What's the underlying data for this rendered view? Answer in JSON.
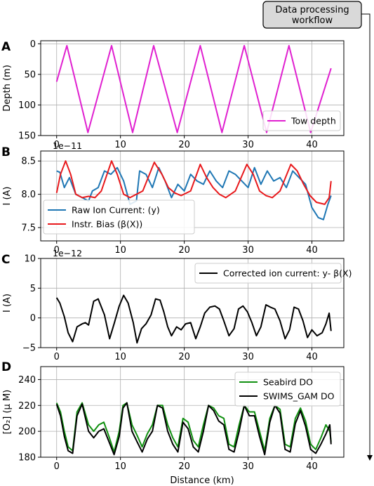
{
  "workflow_box": {
    "line1": "Data processing",
    "line2": "workflow"
  },
  "x_axis": {
    "label": "Distance (km)",
    "range": [
      -2.5,
      45
    ],
    "ticks": [
      0,
      10,
      20,
      30,
      40
    ],
    "tick_labels": [
      "0",
      "10",
      "20",
      "30",
      "40"
    ]
  },
  "chart_data": [
    {
      "panel": "A",
      "type": "line",
      "ylabel": "Depth (m)",
      "ylim": [
        150,
        -5
      ],
      "y_inverted": true,
      "yticks": [
        0,
        50,
        100,
        150
      ],
      "ytick_labels": [
        "0",
        "50",
        "100",
        "150"
      ],
      "grid": true,
      "legend": "lower-right",
      "series": [
        {
          "name": "Tow depth",
          "color": "#e020d0",
          "x": [
            0,
            1.6,
            4.9,
            8.6,
            11.9,
            15.2,
            18.9,
            22.5,
            25.9,
            29.4,
            32.9,
            36.4,
            39.8,
            43.0
          ],
          "y": [
            62,
            3,
            145,
            3,
            145,
            3,
            145,
            3,
            145,
            3,
            145,
            3,
            145,
            40
          ]
        }
      ]
    },
    {
      "panel": "B",
      "type": "line",
      "ylabel": "I (A)",
      "offset_label": "1e−11",
      "ylim": [
        7.3,
        8.65
      ],
      "yticks": [
        7.5,
        8.0,
        8.5
      ],
      "ytick_labels": [
        "7.5",
        "8.0",
        "8.5"
      ],
      "grid": true,
      "legend": "lower-left",
      "series": [
        {
          "name": "Raw Ion Current: (y)",
          "color": "#1f77b4",
          "x": [
            0,
            0.5,
            1.2,
            2.0,
            3.0,
            4.0,
            5.0,
            5.6,
            6.5,
            7.5,
            8.5,
            9.5,
            10.5,
            11.5,
            12.5,
            13.0,
            14.0,
            15.0,
            16.0,
            17.0,
            18.0,
            19.0,
            20.0,
            21.0,
            22.0,
            23.0,
            24.0,
            25.0,
            26.0,
            27.0,
            28.0,
            29.0,
            30.0,
            31.0,
            32.0,
            33.0,
            34.0,
            35.0,
            36.0,
            37.0,
            38.0,
            39.0,
            40.0,
            41.0,
            41.8,
            42.5,
            43.0
          ],
          "y": [
            8.35,
            8.33,
            8.1,
            8.25,
            8.0,
            7.95,
            7.9,
            8.05,
            8.1,
            8.35,
            8.3,
            8.4,
            8.2,
            7.85,
            7.9,
            8.35,
            8.3,
            8.1,
            8.4,
            8.2,
            7.95,
            8.15,
            8.05,
            8.3,
            8.2,
            8.15,
            8.35,
            8.2,
            8.1,
            8.35,
            8.3,
            8.2,
            8.1,
            8.4,
            8.15,
            8.35,
            8.2,
            8.25,
            8.1,
            8.35,
            8.25,
            8.15,
            7.8,
            7.65,
            7.62,
            7.85,
            7.98
          ]
        },
        {
          "name": "Instr. Bias (β(X))",
          "color": "#e8191c",
          "x": [
            0,
            0.6,
            1.4,
            2.2,
            3.0,
            4.0,
            5.0,
            6.0,
            7.0,
            8.6,
            9.5,
            10.5,
            11.5,
            12.5,
            13.5,
            15.3,
            16.5,
            17.5,
            18.5,
            19.5,
            21.0,
            22.5,
            23.5,
            24.5,
            25.5,
            26.5,
            28.0,
            29.8,
            30.8,
            31.8,
            32.8,
            33.8,
            35.0,
            36.7,
            37.7,
            38.7,
            39.7,
            40.7,
            42.0,
            42.7,
            43.0
          ],
          "y": [
            8.02,
            8.3,
            8.5,
            8.3,
            8.0,
            7.95,
            7.97,
            7.95,
            8.05,
            8.5,
            8.3,
            8.0,
            7.95,
            8.0,
            8.05,
            8.48,
            8.3,
            8.1,
            8.02,
            7.98,
            8.05,
            8.45,
            8.25,
            8.1,
            8.0,
            7.95,
            8.05,
            8.45,
            8.3,
            8.05,
            7.98,
            7.95,
            8.05,
            8.45,
            8.35,
            8.15,
            7.98,
            7.88,
            7.85,
            7.95,
            8.2
          ]
        }
      ]
    },
    {
      "panel": "C",
      "type": "line",
      "ylabel": "I (A)",
      "offset_label": "1e−12",
      "ylim": [
        -5,
        10
      ],
      "yticks": [
        -5,
        0,
        5,
        10
      ],
      "ytick_labels": [
        "−5",
        "0",
        "5",
        "10"
      ],
      "grid": true,
      "legend": "upper-right",
      "series": [
        {
          "name": "Corrected ion current: y- β(X)",
          "color": "#000000",
          "x": [
            0,
            0.5,
            1.2,
            1.8,
            2.5,
            3.2,
            4.0,
            4.5,
            5.0,
            5.8,
            6.5,
            7.5,
            8.3,
            9.0,
            9.8,
            10.5,
            11.2,
            12.0,
            12.6,
            13.3,
            14.0,
            14.8,
            15.5,
            16.2,
            16.8,
            17.4,
            18.0,
            18.8,
            19.5,
            20.2,
            21.0,
            21.8,
            22.5,
            23.2,
            24.0,
            24.8,
            25.5,
            26.2,
            27.0,
            27.8,
            28.5,
            29.2,
            29.9,
            30.6,
            31.3,
            32.0,
            32.8,
            33.5,
            34.2,
            35.0,
            35.8,
            36.5,
            37.2,
            37.9,
            38.6,
            39.3,
            40.0,
            40.8,
            41.6,
            42.2,
            42.7,
            43.0
          ],
          "y": [
            3.4,
            2.5,
            0.2,
            -2.5,
            -4.0,
            -1.5,
            -1.0,
            -0.8,
            -1.2,
            2.8,
            3.2,
            0.5,
            -3.5,
            -1.0,
            2.0,
            3.8,
            2.5,
            -0.8,
            -4.2,
            -1.8,
            -1.0,
            0.5,
            3.2,
            3.0,
            1.0,
            -1.5,
            -3.0,
            -1.5,
            -2.0,
            -1.0,
            -0.8,
            -3.5,
            -1.5,
            0.8,
            1.8,
            2.0,
            1.5,
            -0.5,
            -3.0,
            -1.8,
            1.5,
            2.0,
            1.0,
            -0.8,
            -3.0,
            -1.5,
            2.2,
            1.8,
            1.5,
            -0.5,
            -3.5,
            -2.0,
            1.8,
            1.5,
            -0.5,
            -3.3,
            -2.0,
            -3.0,
            -2.5,
            -1.0,
            0.8,
            -2.2
          ]
        }
      ]
    },
    {
      "panel": "D",
      "type": "line",
      "ylabel": "[O₂] (μ M)",
      "ylim": [
        180,
        250
      ],
      "yticks": [
        180,
        200,
        220,
        240
      ],
      "ytick_labels": [
        "180",
        "200",
        "220",
        "240"
      ],
      "grid": true,
      "legend": "upper-right",
      "series": [
        {
          "name": "Seabird DO",
          "color": "#109010",
          "x": [
            0,
            0.6,
            1.2,
            1.8,
            2.5,
            3.2,
            4.0,
            5.0,
            5.8,
            6.6,
            7.4,
            8.2,
            9.0,
            9.8,
            10.4,
            11.0,
            11.8,
            12.6,
            13.4,
            14.2,
            15.0,
            15.8,
            16.6,
            17.4,
            18.2,
            19.0,
            19.8,
            20.6,
            21.4,
            22.2,
            23.0,
            23.8,
            24.6,
            25.4,
            26.2,
            27.0,
            27.8,
            28.6,
            29.4,
            30.2,
            31.0,
            31.8,
            32.6,
            33.4,
            34.2,
            35.0,
            35.8,
            36.6,
            37.4,
            38.2,
            39.0,
            39.8,
            40.6,
            41.4,
            42.2,
            42.8,
            43.0
          ],
          "y": [
            222,
            215,
            200,
            188,
            185,
            215,
            222,
            205,
            200,
            205,
            207,
            196,
            184,
            200,
            220,
            222,
            205,
            197,
            188,
            198,
            205,
            220,
            220,
            205,
            195,
            188,
            210,
            207,
            193,
            188,
            205,
            220,
            218,
            212,
            210,
            190,
            188,
            205,
            220,
            215,
            215,
            200,
            185,
            210,
            220,
            217,
            190,
            188,
            210,
            218,
            208,
            190,
            186,
            195,
            205,
            200,
            192
          ]
        },
        {
          "name": "SWIMS_GAM DO",
          "color": "#000000",
          "x": [
            0,
            0.6,
            1.2,
            1.8,
            2.5,
            3.2,
            4.0,
            5.0,
            5.8,
            6.6,
            7.4,
            8.2,
            9.0,
            9.8,
            10.4,
            11.0,
            11.8,
            12.6,
            13.4,
            14.2,
            15.0,
            15.8,
            16.6,
            17.4,
            18.2,
            19.0,
            19.8,
            20.6,
            21.4,
            22.2,
            23.0,
            23.8,
            24.6,
            25.4,
            26.2,
            27.0,
            27.8,
            28.6,
            29.4,
            30.2,
            31.0,
            31.8,
            32.6,
            33.4,
            34.2,
            35.0,
            35.8,
            36.6,
            37.4,
            38.2,
            39.0,
            39.8,
            40.6,
            41.4,
            42.2,
            42.8,
            43.0
          ],
          "y": [
            221,
            212,
            196,
            185,
            183,
            212,
            221,
            200,
            195,
            200,
            202,
            192,
            182,
            196,
            218,
            222,
            200,
            192,
            184,
            194,
            200,
            220,
            218,
            200,
            190,
            184,
            207,
            202,
            188,
            184,
            200,
            220,
            216,
            208,
            205,
            186,
            184,
            200,
            220,
            212,
            212,
            196,
            182,
            207,
            220,
            214,
            186,
            184,
            206,
            216,
            204,
            186,
            183,
            190,
            198,
            205,
            190
          ]
        }
      ]
    }
  ]
}
